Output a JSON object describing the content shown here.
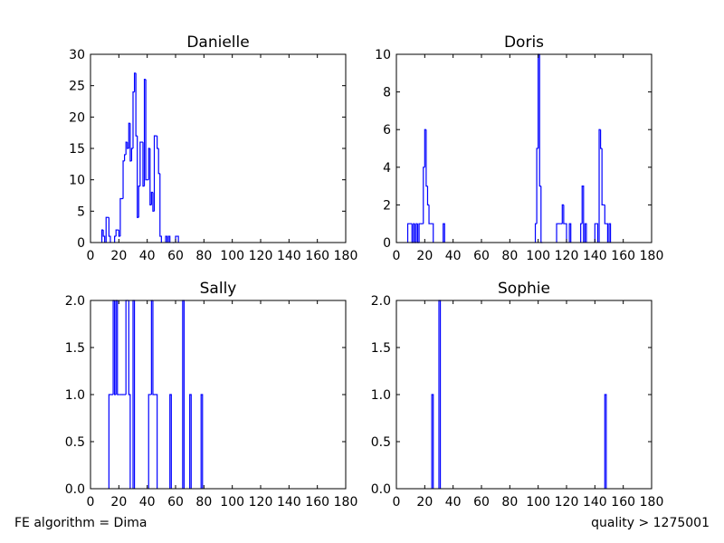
{
  "footer": {
    "left_text": "FE algorithm = Dima",
    "right_text": "quality > 1275001"
  },
  "colors": {
    "series": "#0000ff",
    "axes": "#000000",
    "background": "#ffffff"
  },
  "chart_data": [
    {
      "type": "histogram",
      "title": "Danielle",
      "xlim": [
        0,
        180
      ],
      "ylim": [
        0,
        30
      ],
      "xticks": [
        0,
        20,
        40,
        60,
        80,
        100,
        120,
        140,
        160,
        180
      ],
      "yticks": [
        0,
        5,
        10,
        15,
        20,
        25,
        30
      ],
      "grid": false,
      "bin_width": 1,
      "bins": [
        [
          8,
          2
        ],
        [
          9,
          1
        ],
        [
          11,
          4
        ],
        [
          12,
          4
        ],
        [
          13,
          1
        ],
        [
          17,
          1
        ],
        [
          18,
          2
        ],
        [
          19,
          2
        ],
        [
          20,
          1
        ],
        [
          21,
          7
        ],
        [
          22,
          7
        ],
        [
          23,
          13
        ],
        [
          24,
          14
        ],
        [
          25,
          16
        ],
        [
          26,
          15
        ],
        [
          27,
          19
        ],
        [
          28,
          13
        ],
        [
          29,
          15
        ],
        [
          30,
          24
        ],
        [
          31,
          27
        ],
        [
          32,
          17
        ],
        [
          33,
          4
        ],
        [
          34,
          9
        ],
        [
          35,
          16
        ],
        [
          36,
          16
        ],
        [
          37,
          9
        ],
        [
          38,
          26
        ],
        [
          39,
          10
        ],
        [
          40,
          10
        ],
        [
          41,
          15
        ],
        [
          42,
          6
        ],
        [
          43,
          8
        ],
        [
          44,
          5
        ],
        [
          45,
          17
        ],
        [
          46,
          17
        ],
        [
          47,
          15
        ],
        [
          48,
          11
        ],
        [
          49,
          1
        ],
        [
          53,
          1
        ],
        [
          55,
          1
        ],
        [
          58,
          0
        ],
        [
          60,
          1
        ],
        [
          61,
          1
        ]
      ]
    },
    {
      "type": "histogram",
      "title": "Doris",
      "xlim": [
        0,
        180
      ],
      "ylim": [
        0,
        10
      ],
      "xticks": [
        0,
        20,
        40,
        60,
        80,
        100,
        120,
        140,
        160,
        180
      ],
      "yticks": [
        0,
        2,
        4,
        6,
        8,
        10
      ],
      "grid": false,
      "bin_width": 1,
      "bins": [
        [
          8,
          1
        ],
        [
          9,
          1
        ],
        [
          10,
          1
        ],
        [
          11,
          0
        ],
        [
          12,
          1
        ],
        [
          13,
          0
        ],
        [
          14,
          1
        ],
        [
          15,
          0
        ],
        [
          16,
          1
        ],
        [
          17,
          1
        ],
        [
          18,
          1
        ],
        [
          19,
          4
        ],
        [
          20,
          6
        ],
        [
          21,
          3
        ],
        [
          22,
          2
        ],
        [
          23,
          1
        ],
        [
          24,
          1
        ],
        [
          25,
          1
        ],
        [
          33,
          1
        ],
        [
          98,
          1
        ],
        [
          99,
          5
        ],
        [
          100,
          10
        ],
        [
          101,
          3
        ],
        [
          102,
          0
        ],
        [
          113,
          1
        ],
        [
          114,
          1
        ],
        [
          115,
          1
        ],
        [
          116,
          1
        ],
        [
          117,
          2
        ],
        [
          118,
          1
        ],
        [
          119,
          1
        ],
        [
          122,
          1
        ],
        [
          130,
          1
        ],
        [
          131,
          3
        ],
        [
          133,
          1
        ],
        [
          140,
          1
        ],
        [
          141,
          1
        ],
        [
          143,
          6
        ],
        [
          144,
          5
        ],
        [
          145,
          2
        ],
        [
          146,
          2
        ],
        [
          147,
          1
        ],
        [
          148,
          1
        ],
        [
          150,
          1
        ]
      ]
    },
    {
      "type": "histogram",
      "title": "Sally",
      "xlim": [
        0,
        180
      ],
      "ylim": [
        0,
        2
      ],
      "xticks": [
        0,
        20,
        40,
        60,
        80,
        100,
        120,
        140,
        160,
        180
      ],
      "yticks": [
        0.0,
        0.5,
        1.0,
        1.5,
        2.0
      ],
      "grid": false,
      "bin_width": 1,
      "bins": [
        [
          13,
          1
        ],
        [
          14,
          1
        ],
        [
          15,
          1
        ],
        [
          16,
          2
        ],
        [
          17,
          1
        ],
        [
          18,
          2
        ],
        [
          19,
          1
        ],
        [
          20,
          1
        ],
        [
          21,
          1
        ],
        [
          22,
          1
        ],
        [
          23,
          1
        ],
        [
          24,
          1
        ],
        [
          25,
          2
        ],
        [
          26,
          2
        ],
        [
          27,
          1
        ],
        [
          30,
          2
        ],
        [
          41,
          1
        ],
        [
          42,
          1
        ],
        [
          43,
          2
        ],
        [
          44,
          1
        ],
        [
          45,
          1
        ],
        [
          46,
          1
        ],
        [
          56,
          1
        ],
        [
          65,
          2
        ],
        [
          70,
          1
        ],
        [
          78,
          1
        ]
      ]
    },
    {
      "type": "histogram",
      "title": "Sophie",
      "xlim": [
        0,
        180
      ],
      "ylim": [
        0,
        2
      ],
      "xticks": [
        0,
        20,
        40,
        60,
        80,
        100,
        120,
        140,
        160,
        180
      ],
      "yticks": [
        0.0,
        0.5,
        1.0,
        1.5,
        2.0
      ],
      "grid": false,
      "bin_width": 1,
      "bins": [
        [
          25,
          1
        ],
        [
          30,
          2
        ],
        [
          147,
          1
        ]
      ]
    }
  ]
}
